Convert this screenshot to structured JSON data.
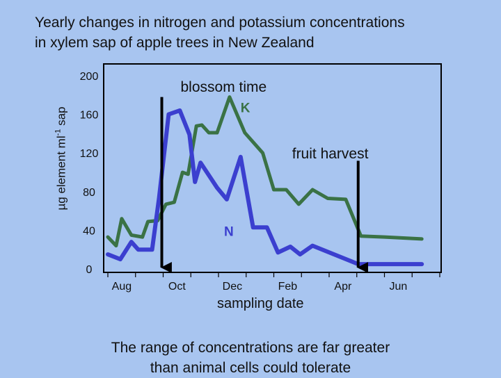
{
  "title_line1": "Yearly changes in nitrogen and potassium concentrations",
  "title_line2": "in xylem sap of apple trees in New Zealand",
  "caption_line1": "The range of concentrations are far greater",
  "caption_line2": "than animal cells could tolerate",
  "colors": {
    "background": "#a8c5f0",
    "K": "#3a7245",
    "N": "#3b3fcf",
    "arrow": "#000000"
  },
  "chart_data": {
    "type": "line",
    "title": "Yearly changes in nitrogen and potassium concentrations in xylem sap of apple trees in New Zealand",
    "xlabel": "sampling date",
    "ylabel": "µg element ml-1 sap",
    "ylabel_parts": {
      "pre": "µg element ml",
      "sup": "-1",
      "post": " sap"
    },
    "ylim": [
      0,
      200
    ],
    "xlim": [
      0,
      12
    ],
    "yticks": [
      0,
      40,
      80,
      120,
      160,
      200
    ],
    "xticks": [
      {
        "label": "Aug",
        "x": 0.5
      },
      {
        "label": "Oct",
        "x": 2.5
      },
      {
        "label": "Dec",
        "x": 4.5
      },
      {
        "label": "Feb",
        "x": 6.5
      },
      {
        "label": "Apr",
        "x": 8.5
      },
      {
        "label": "Jun",
        "x": 10.5
      }
    ],
    "series": [
      {
        "name": "K",
        "color": "#3a7245",
        "points": [
          [
            0.0,
            33
          ],
          [
            0.3,
            24
          ],
          [
            0.5,
            52
          ],
          [
            0.85,
            35
          ],
          [
            1.25,
            33
          ],
          [
            1.45,
            49
          ],
          [
            1.8,
            50
          ],
          [
            2.1,
            67
          ],
          [
            2.4,
            69
          ],
          [
            2.7,
            100
          ],
          [
            2.9,
            98
          ],
          [
            3.2,
            148
          ],
          [
            3.4,
            149
          ],
          [
            3.65,
            141
          ],
          [
            3.95,
            141
          ],
          [
            4.4,
            178
          ],
          [
            4.95,
            141
          ],
          [
            5.6,
            120
          ],
          [
            6.0,
            82
          ],
          [
            6.45,
            82
          ],
          [
            6.9,
            67
          ],
          [
            7.4,
            82
          ],
          [
            7.95,
            73
          ],
          [
            8.6,
            72
          ],
          [
            9.15,
            34
          ],
          [
            10.0,
            33
          ],
          [
            11.35,
            31
          ]
        ]
      },
      {
        "name": "N",
        "color": "#3b3fcf",
        "points": [
          [
            0.0,
            15
          ],
          [
            0.45,
            10
          ],
          [
            0.85,
            28
          ],
          [
            1.1,
            20
          ],
          [
            1.6,
            20
          ],
          [
            1.85,
            73
          ],
          [
            2.2,
            160
          ],
          [
            2.6,
            164
          ],
          [
            2.95,
            139
          ],
          [
            3.15,
            90
          ],
          [
            3.35,
            110
          ],
          [
            3.95,
            84
          ],
          [
            4.3,
            72
          ],
          [
            4.8,
            116
          ],
          [
            5.25,
            43
          ],
          [
            5.75,
            43
          ],
          [
            6.15,
            17
          ],
          [
            6.6,
            23
          ],
          [
            6.95,
            15
          ],
          [
            7.4,
            24
          ],
          [
            9.05,
            5
          ],
          [
            11.35,
            5
          ]
        ]
      }
    ],
    "annotations": [
      {
        "text": "blossom time",
        "arrow_x": 1.95,
        "arrow_top": 178
      },
      {
        "text": "fruit harvest",
        "arrow_x": 9.05,
        "arrow_top": 112
      }
    ]
  }
}
